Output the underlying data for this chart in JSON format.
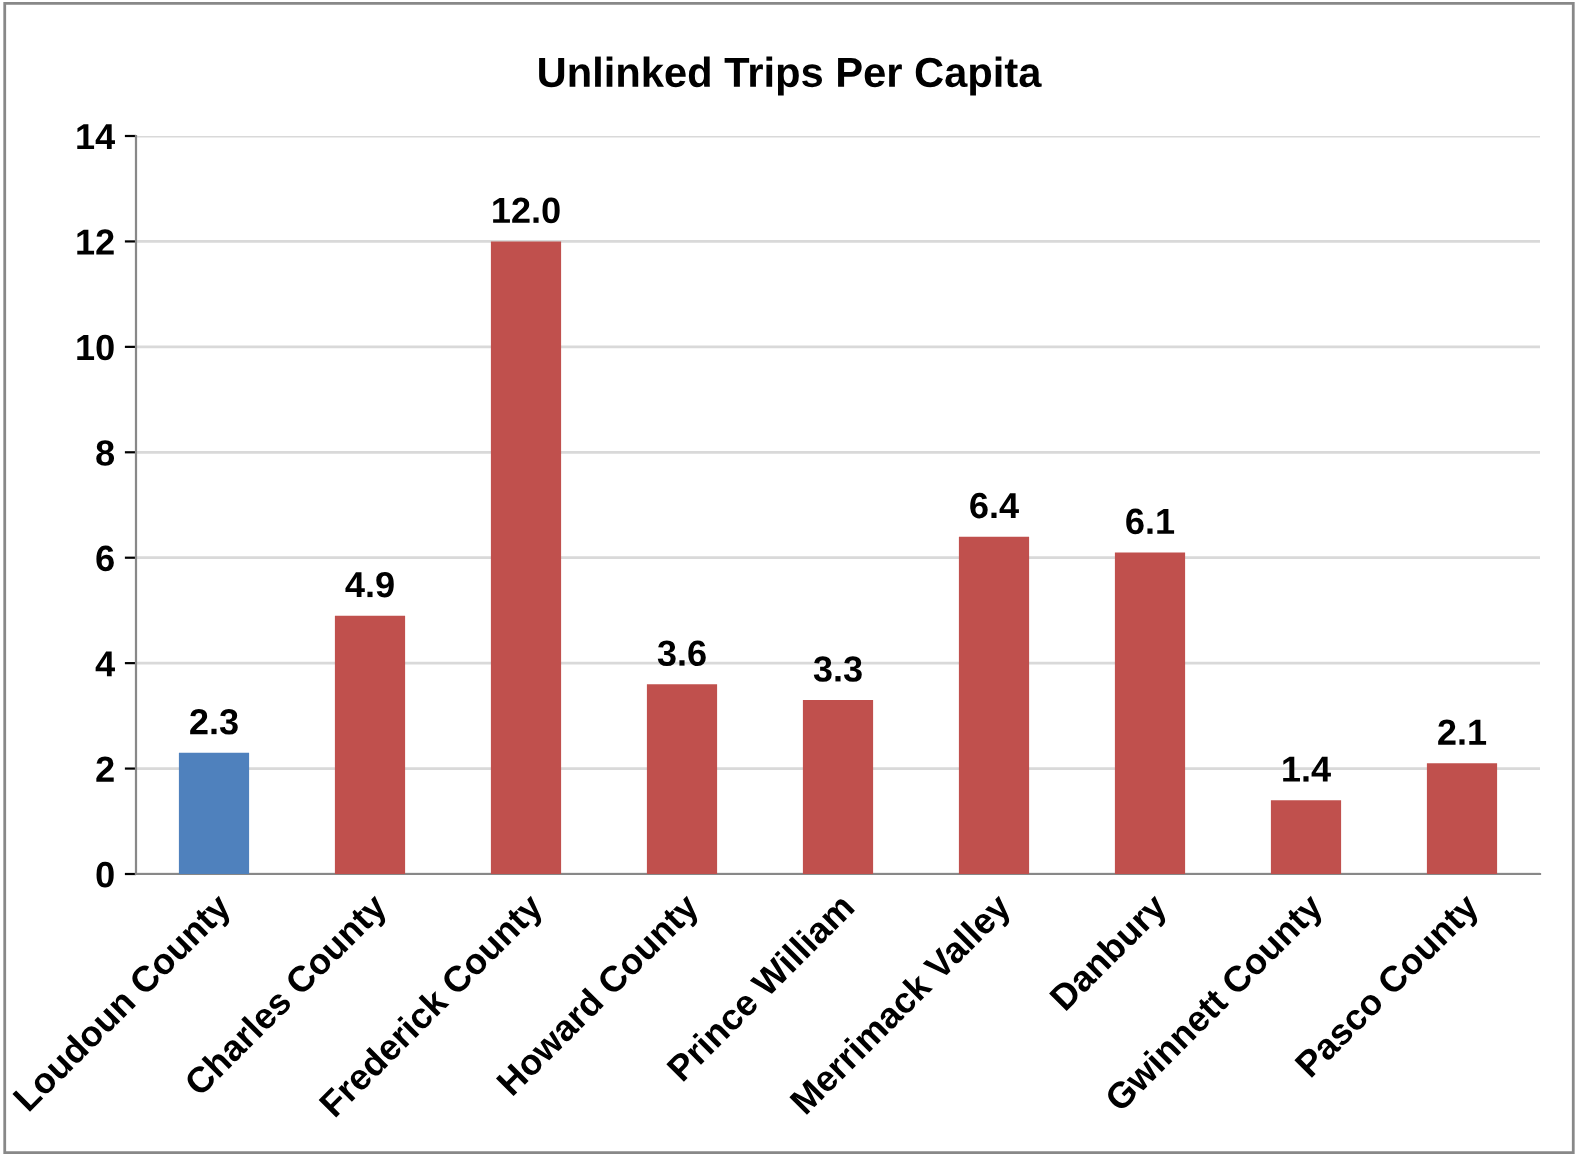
{
  "chart_data": {
    "type": "bar",
    "title": "Unlinked Trips Per Capita",
    "categories": [
      "Loudoun County",
      "Charles County",
      "Frederick County",
      "Howard County",
      "Prince William",
      "Merrimack Valley",
      "Danbury",
      "Gwinnett County",
      "Pasco County"
    ],
    "values": [
      2.3,
      4.9,
      12.0,
      3.6,
      3.3,
      6.4,
      6.1,
      1.4,
      2.1
    ],
    "value_labels": [
      "2.3",
      "4.9",
      "12.0",
      "3.6",
      "3.3",
      "6.4",
      "6.1",
      "1.4",
      "2.1"
    ],
    "colors": [
      "#4f81bd",
      "#c0504d",
      "#c0504d",
      "#c0504d",
      "#c0504d",
      "#c0504d",
      "#c0504d",
      "#c0504d",
      "#c0504d"
    ],
    "ylim": [
      0,
      14
    ],
    "yticks": [
      0,
      2,
      4,
      6,
      8,
      10,
      12,
      14
    ],
    "grid": "y",
    "legend": false
  }
}
